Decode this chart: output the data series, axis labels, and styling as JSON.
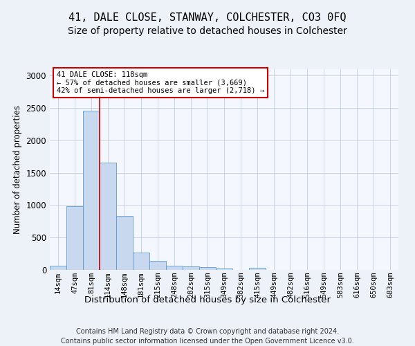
{
  "title": "41, DALE CLOSE, STANWAY, COLCHESTER, CO3 0FQ",
  "subtitle": "Size of property relative to detached houses in Colchester",
  "xlabel": "Distribution of detached houses by size in Colchester",
  "ylabel": "Number of detached properties",
  "bar_color": "#c8d8ee",
  "bar_edge_color": "#5b9bd5",
  "categories": [
    "14sqm",
    "47sqm",
    "81sqm",
    "114sqm",
    "148sqm",
    "181sqm",
    "215sqm",
    "248sqm",
    "282sqm",
    "315sqm",
    "349sqm",
    "382sqm",
    "415sqm",
    "449sqm",
    "482sqm",
    "516sqm",
    "549sqm",
    "583sqm",
    "616sqm",
    "650sqm",
    "683sqm"
  ],
  "values": [
    60,
    980,
    2460,
    1660,
    830,
    265,
    135,
    60,
    50,
    40,
    25,
    0,
    35,
    0,
    0,
    0,
    0,
    0,
    0,
    0,
    0
  ],
  "property_line_color": "#cc0000",
  "property_line_x": 2.5,
  "annotation_text": "41 DALE CLOSE: 118sqm\n← 57% of detached houses are smaller (3,669)\n42% of semi-detached houses are larger (2,718) →",
  "annotation_box_color": "#cc0000",
  "ylim": [
    0,
    3100
  ],
  "yticks": [
    0,
    500,
    1000,
    1500,
    2000,
    2500,
    3000
  ],
  "grid_color": "#c8d4e8",
  "background_color": "#edf2f8",
  "plot_bg_color": "#f4f7fd",
  "footer": "Contains HM Land Registry data © Crown copyright and database right 2024.\nContains public sector information licensed under the Open Government Licence v3.0.",
  "title_fontsize": 11,
  "subtitle_fontsize": 10,
  "xlabel_fontsize": 9.5,
  "ylabel_fontsize": 8.5,
  "tick_fontsize": 7.5,
  "footer_fontsize": 7
}
